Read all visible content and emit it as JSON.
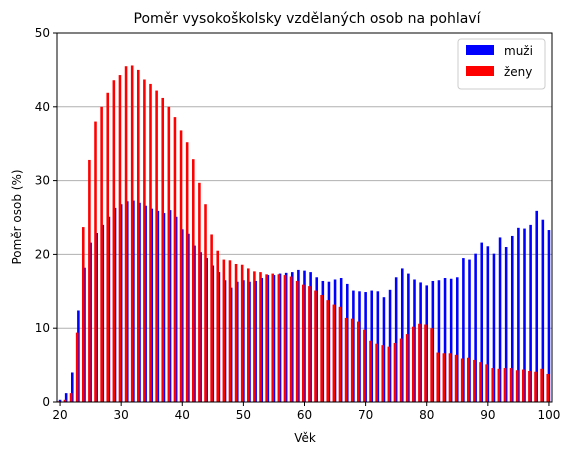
{
  "chart_data": {
    "type": "bar",
    "title": "Poměr vysokoškolsky vzdělaných osob na pohlaví",
    "xlabel": "Věk",
    "ylabel": "Poměr osob (%)",
    "xlim": [
      19.5,
      100.5
    ],
    "ylim": [
      0,
      50
    ],
    "xticks": [
      20,
      30,
      40,
      50,
      60,
      70,
      80,
      90,
      100
    ],
    "yticks": [
      0,
      10,
      20,
      30,
      40,
      50
    ],
    "grid": "y",
    "legend": "top-right",
    "x": [
      20,
      21,
      22,
      23,
      24,
      25,
      26,
      27,
      28,
      29,
      30,
      31,
      32,
      33,
      34,
      35,
      36,
      37,
      38,
      39,
      40,
      41,
      42,
      43,
      44,
      45,
      46,
      47,
      48,
      49,
      50,
      51,
      52,
      53,
      54,
      55,
      56,
      57,
      58,
      59,
      60,
      61,
      62,
      63,
      64,
      65,
      66,
      67,
      68,
      69,
      70,
      71,
      72,
      73,
      74,
      75,
      76,
      77,
      78,
      79,
      80,
      81,
      82,
      83,
      84,
      85,
      86,
      87,
      88,
      89,
      90,
      91,
      92,
      93,
      94,
      95,
      96,
      97,
      98,
      99,
      100
    ],
    "series": [
      {
        "name": "muži",
        "color": "#0000ff",
        "values": [
          0.3,
          1.2,
          4.0,
          12.4,
          18.2,
          21.6,
          22.9,
          24.0,
          25.1,
          26.3,
          26.8,
          27.2,
          27.3,
          27.0,
          26.6,
          26.2,
          25.9,
          25.6,
          26.0,
          25.1,
          23.4,
          22.8,
          21.2,
          20.3,
          19.5,
          18.5,
          17.6,
          16.5,
          15.5,
          16.3,
          16.5,
          16.3,
          16.4,
          16.8,
          17.2,
          17.2,
          17.4,
          17.5,
          17.6,
          17.9,
          17.8,
          17.6,
          16.9,
          16.4,
          16.3,
          16.6,
          16.8,
          16.0,
          15.1,
          15.0,
          14.9,
          15.1,
          15.0,
          14.2,
          15.2,
          16.9,
          18.1,
          17.4,
          16.6,
          16.2,
          15.8,
          16.4,
          16.5,
          16.8,
          16.7,
          16.9,
          19.5,
          19.3,
          20.1,
          21.6,
          21.1,
          20.1,
          22.3,
          21.0,
          22.5,
          23.6,
          23.5,
          24.0,
          25.9,
          24.7,
          23.3
        ]
      },
      {
        "name": "ženy",
        "color": "#ff0000",
        "values": [
          0.1,
          0.3,
          1.2,
          9.4,
          23.7,
          32.8,
          38.0,
          40.0,
          41.9,
          43.6,
          44.3,
          45.5,
          45.6,
          45.0,
          43.7,
          43.1,
          42.2,
          41.2,
          40.0,
          38.6,
          36.8,
          35.2,
          32.9,
          29.7,
          26.8,
          22.7,
          20.5,
          19.3,
          19.2,
          18.7,
          18.6,
          18.1,
          17.7,
          17.6,
          17.3,
          17.4,
          17.3,
          17.2,
          17.0,
          16.4,
          15.9,
          15.7,
          15.1,
          14.5,
          13.8,
          13.2,
          12.9,
          11.4,
          11.3,
          10.9,
          9.8,
          8.3,
          7.9,
          7.7,
          7.5,
          8.0,
          8.6,
          9.2,
          10.2,
          10.6,
          10.5,
          10.0,
          6.7,
          6.6,
          6.6,
          6.4,
          5.9,
          6.0,
          5.7,
          5.4,
          5.1,
          4.6,
          4.5,
          4.6,
          4.6,
          4.3,
          4.4,
          4.2,
          4.1,
          4.5,
          3.8
        ]
      }
    ]
  }
}
